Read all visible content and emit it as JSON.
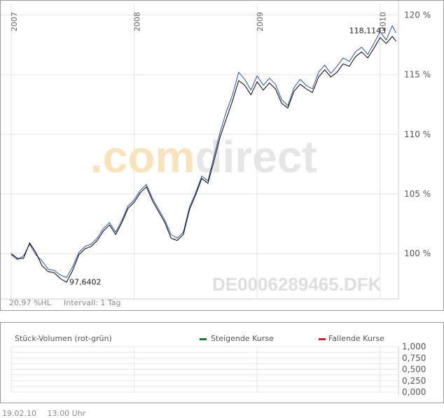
{
  "chart_data": [
    {
      "type": "line",
      "x_tick_labels": [
        "2007",
        "2008",
        "2009",
        "2010"
      ],
      "y_tick_labels": [
        "100 %",
        "105 %",
        "110 %",
        "115 %",
        "120 %"
      ],
      "y_ticks": [
        100,
        105,
        110,
        115,
        120
      ],
      "ylim": [
        96.2,
        120.9
      ],
      "xlim": [
        2007.0,
        2010.15
      ],
      "grid": true,
      "watermark": ".comdirect",
      "instrument": "DE0006289465.DFK",
      "stat_left": "20,97 %HL",
      "stat_interval": "Intervall: 1 Tag",
      "annotations": [
        {
          "text": "118,1143",
          "x": 2010.0,
          "y": 118.11
        },
        {
          "text": "97,6402",
          "x": 2007.45,
          "y": 97.64
        }
      ],
      "colors": {
        "blue_series": "#2a52a8",
        "black_series": "#000000",
        "grid": "#e2e2e2",
        "watermark_orange": "#f7e2bb",
        "watermark_gray": "#e4e4e4"
      },
      "series": [
        {
          "x": [
            2007.0,
            2007.05,
            2007.1,
            2007.15,
            2007.2,
            2007.25,
            2007.3,
            2007.35,
            2007.4,
            2007.45,
            2007.5,
            2007.55,
            2007.6,
            2007.65,
            2007.7,
            2007.75,
            2007.8,
            2007.85,
            2007.9,
            2007.95,
            2008.0,
            2008.05,
            2008.1,
            2008.15,
            2008.2,
            2008.25,
            2008.3,
            2008.35,
            2008.4,
            2008.45,
            2008.5,
            2008.55,
            2008.6,
            2008.65,
            2008.7,
            2008.75,
            2008.8,
            2008.85,
            2008.9,
            2008.95,
            2009.0,
            2009.05,
            2009.1,
            2009.15,
            2009.2,
            2009.25,
            2009.3,
            2009.35,
            2009.4,
            2009.45,
            2009.5,
            2009.55,
            2009.6,
            2009.65,
            2009.7,
            2009.75,
            2009.8,
            2009.85,
            2009.9,
            2009.95,
            2010.0,
            2010.05,
            2010.1,
            2010.13
          ],
          "values": [
            99.9,
            99.5,
            99.8,
            100.8,
            99.9,
            99.4,
            98.7,
            98.6,
            98.2,
            98.0,
            98.9,
            100.1,
            100.6,
            100.8,
            101.3,
            102.1,
            102.6,
            101.8,
            102.8,
            104.0,
            104.5,
            105.3,
            105.8,
            104.6,
            103.7,
            102.8,
            101.6,
            101.3,
            101.8,
            103.9,
            105.1,
            106.5,
            106.1,
            108.2,
            110.2,
            111.9,
            113.3,
            115.2,
            114.6,
            113.7,
            114.9,
            114.1,
            114.7,
            114.2,
            112.9,
            112.4,
            113.9,
            114.6,
            114.1,
            113.8,
            115.2,
            115.8,
            115.1,
            115.7,
            116.4,
            116.1,
            116.9,
            117.3,
            116.7,
            117.6,
            118.6,
            117.9,
            119.1,
            118.5
          ]
        },
        {
          "x": [
            2007.0,
            2007.05,
            2007.1,
            2007.15,
            2007.2,
            2007.25,
            2007.3,
            2007.35,
            2007.4,
            2007.45,
            2007.5,
            2007.55,
            2007.6,
            2007.65,
            2007.7,
            2007.75,
            2007.8,
            2007.85,
            2007.9,
            2007.95,
            2008.0,
            2008.05,
            2008.1,
            2008.15,
            2008.2,
            2008.25,
            2008.3,
            2008.35,
            2008.4,
            2008.45,
            2008.5,
            2008.55,
            2008.6,
            2008.65,
            2008.7,
            2008.75,
            2008.8,
            2008.85,
            2008.9,
            2008.95,
            2009.0,
            2009.05,
            2009.1,
            2009.15,
            2009.2,
            2009.25,
            2009.3,
            2009.35,
            2009.4,
            2009.45,
            2009.5,
            2009.55,
            2009.6,
            2009.65,
            2009.7,
            2009.75,
            2009.8,
            2009.85,
            2009.9,
            2009.95,
            2010.0,
            2010.05,
            2010.1,
            2010.13
          ],
          "values": [
            100.0,
            99.6,
            99.6,
            100.9,
            100.1,
            99.0,
            98.5,
            98.4,
            97.9,
            97.6,
            98.6,
            99.9,
            100.4,
            100.6,
            101.1,
            101.9,
            102.4,
            101.6,
            102.6,
            103.8,
            104.3,
            105.1,
            105.6,
            104.4,
            103.5,
            102.6,
            101.3,
            101.1,
            101.6,
            103.7,
            104.9,
            106.3,
            105.9,
            107.8,
            109.8,
            111.3,
            112.8,
            114.5,
            114.1,
            113.3,
            114.4,
            113.7,
            114.3,
            113.8,
            112.6,
            112.2,
            113.6,
            114.2,
            113.8,
            113.5,
            114.8,
            115.4,
            114.8,
            115.2,
            115.9,
            115.7,
            116.5,
            116.9,
            116.4,
            117.2,
            118.1,
            117.6,
            118.2,
            117.8
          ]
        }
      ]
    },
    {
      "type": "bar",
      "title": "Stück-Volumen (rot-grün)",
      "legend": [
        {
          "label": "Steigende Kurse",
          "color": "#1c7a2a"
        },
        {
          "label": "Fallende Kurse",
          "color": "#cc1d1d"
        }
      ],
      "y_tick_labels": [
        "1,000",
        "0,750",
        "0,500",
        "0,250",
        "0,000"
      ],
      "ylim": [
        0,
        1
      ],
      "values": []
    }
  ],
  "footer": {
    "date": "19.02.10",
    "time": "13:00 Uhr"
  }
}
